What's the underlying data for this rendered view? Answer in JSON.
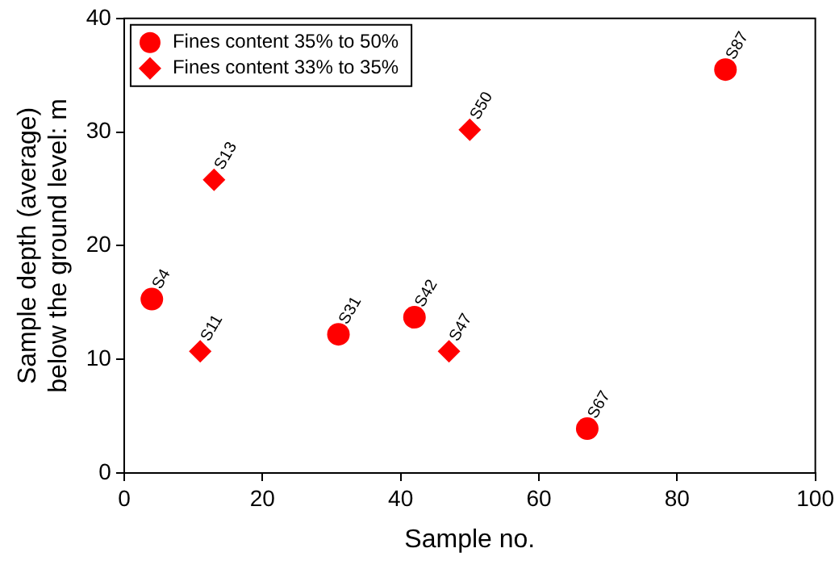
{
  "chart_data": {
    "type": "scatter",
    "xlabel": "Sample no.",
    "ylabel": "Sample depth (average)\nbelow the ground level: m",
    "xlim": [
      0,
      100
    ],
    "xticks": [
      0,
      20,
      40,
      60,
      80,
      100
    ],
    "ylim": [
      0,
      40
    ],
    "yticks": [
      0,
      10,
      20,
      30,
      40
    ],
    "grid": false,
    "legend": "top left",
    "series": [
      {
        "name": "Fines content 35% to 50%",
        "color": "#ff0000",
        "marker": "circle",
        "x": [
          4,
          31,
          42,
          67,
          87
        ],
        "values": [
          15.3,
          12.2,
          13.7,
          3.9,
          35.5
        ]
      },
      {
        "name": "Fines content 33% to 35%",
        "color": "#ff0000",
        "marker": "diamond",
        "x": [
          11,
          13,
          47,
          50
        ],
        "values": [
          10.7,
          25.8,
          10.7,
          30.2
        ]
      }
    ],
    "annotations": [
      {
        "text": "S4",
        "x": 4,
        "y": 15.3
      },
      {
        "text": "S31",
        "x": 31,
        "y": 12.2
      },
      {
        "text": "S42",
        "x": 42,
        "y": 13.7
      },
      {
        "text": "S67",
        "x": 67,
        "y": 3.9
      },
      {
        "text": "S87",
        "x": 87,
        "y": 35.5
      },
      {
        "text": "S11",
        "x": 11,
        "y": 10.7
      },
      {
        "text": "S13",
        "x": 13,
        "y": 25.8
      },
      {
        "text": "S47",
        "x": 47,
        "y": 10.7
      },
      {
        "text": "S50",
        "x": 50,
        "y": 30.2
      }
    ]
  }
}
